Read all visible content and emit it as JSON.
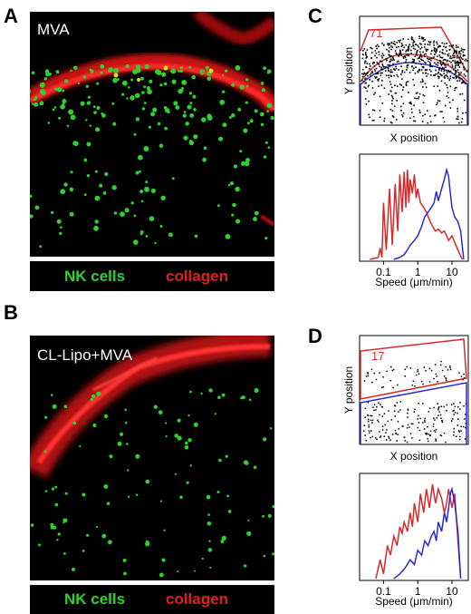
{
  "panels": {
    "A": {
      "letter": "A",
      "condition": "MVA"
    },
    "B": {
      "letter": "B",
      "condition": "CL-Lipo+MVA"
    },
    "C": {
      "letter": "C",
      "track_count": "71"
    },
    "D": {
      "letter": "D",
      "track_count": "17"
    }
  },
  "legend": {
    "green_label": "NK cells",
    "red_label": "collagen"
  },
  "colors": {
    "nk": "#2fd12f",
    "collagen": "#e02020",
    "region_upper": "#d42a2a",
    "region_lower": "#2a2ad4",
    "points": "#000000"
  },
  "chart_data": [
    {
      "panel": "C-top",
      "type": "scatter",
      "xlabel": "X position",
      "ylabel": "Y position",
      "annotation": "71",
      "grid": false
    },
    {
      "panel": "C-bottom",
      "type": "line",
      "xlabel": "Speed (μm/min)",
      "x_scale": "log",
      "xlim": [
        0.02,
        30
      ],
      "x_ticks": [
        "0.1",
        "1",
        "10"
      ],
      "series": [
        {
          "color": "#d42a2a",
          "x": [
            0.04,
            0.07,
            0.08,
            0.09,
            0.1,
            0.12,
            0.15,
            0.18,
            0.22,
            0.26,
            0.3,
            0.35,
            0.4,
            0.45,
            0.5,
            0.55,
            0.6,
            0.7,
            0.8,
            0.9,
            1.0,
            1.2,
            1.5,
            1.8,
            2.2,
            2.7,
            3.3,
            4,
            5,
            6,
            7,
            8,
            10,
            12,
            15,
            20
          ],
          "y": [
            0,
            0.02,
            0.12,
            0.02,
            0.6,
            0.1,
            0.75,
            0.15,
            0.8,
            0.3,
            0.9,
            0.5,
            0.93,
            0.55,
            0.95,
            0.6,
            0.85,
            0.7,
            0.9,
            0.65,
            0.75,
            0.6,
            0.55,
            0.5,
            0.42,
            0.35,
            0.3,
            0.32,
            0.28,
            0.3,
            0.25,
            0.2,
            0.25,
            0.18,
            0.1,
            0
          ]
        },
        {
          "color": "#2a2ad4",
          "x": [
            0.2,
            0.3,
            0.4,
            0.5,
            0.6,
            0.8,
            1.0,
            1.3,
            1.6,
            2,
            2.5,
            3,
            3.5,
            4,
            5,
            6,
            7,
            8,
            9,
            10,
            12,
            15,
            18,
            22
          ],
          "y": [
            0,
            0.02,
            0.05,
            0.1,
            0.15,
            0.2,
            0.25,
            0.35,
            0.45,
            0.5,
            0.55,
            0.6,
            0.72,
            0.62,
            0.75,
            0.85,
            0.95,
            0.88,
            0.7,
            0.55,
            0.45,
            0.4,
            0.3,
            0
          ]
        }
      ]
    },
    {
      "panel": "D-top",
      "type": "scatter",
      "xlabel": "X position",
      "ylabel": "Y position",
      "annotation": "17",
      "grid": false
    },
    {
      "panel": "D-bottom",
      "type": "line",
      "xlabel": "Speed (μm/min)",
      "x_scale": "log",
      "xlim": [
        0.02,
        30
      ],
      "x_ticks": [
        "0.1",
        "1",
        "10"
      ],
      "series": [
        {
          "color": "#d42a2a",
          "x": [
            0.06,
            0.08,
            0.1,
            0.13,
            0.16,
            0.2,
            0.25,
            0.3,
            0.35,
            0.4,
            0.5,
            0.6,
            0.7,
            0.8,
            1.0,
            1.2,
            1.5,
            1.8,
            2.2,
            2.7,
            3.3,
            4,
            5,
            6,
            7,
            8,
            10,
            12,
            15,
            18
          ],
          "y": [
            0,
            0.2,
            0.05,
            0.35,
            0.25,
            0.45,
            0.35,
            0.55,
            0.48,
            0.6,
            0.5,
            0.7,
            0.55,
            0.8,
            0.6,
            0.9,
            0.7,
            0.95,
            0.75,
            1.0,
            0.8,
            0.95,
            0.85,
            0.7,
            0.8,
            0.95,
            0.75,
            0.9,
            0.4,
            0
          ]
        },
        {
          "color": "#2a2ad4",
          "x": [
            0.2,
            0.3,
            0.4,
            0.5,
            0.6,
            0.8,
            1.0,
            1.3,
            1.6,
            2,
            2.5,
            3,
            3.5,
            4,
            5,
            6,
            7,
            8,
            9,
            10,
            12,
            15,
            18
          ],
          "y": [
            0,
            0.05,
            0.1,
            0.15,
            0.2,
            0.15,
            0.3,
            0.25,
            0.4,
            0.35,
            0.45,
            0.5,
            0.4,
            0.6,
            0.5,
            0.7,
            0.6,
            0.75,
            0.9,
            0.95,
            0.8,
            0.5,
            0
          ]
        }
      ]
    }
  ]
}
